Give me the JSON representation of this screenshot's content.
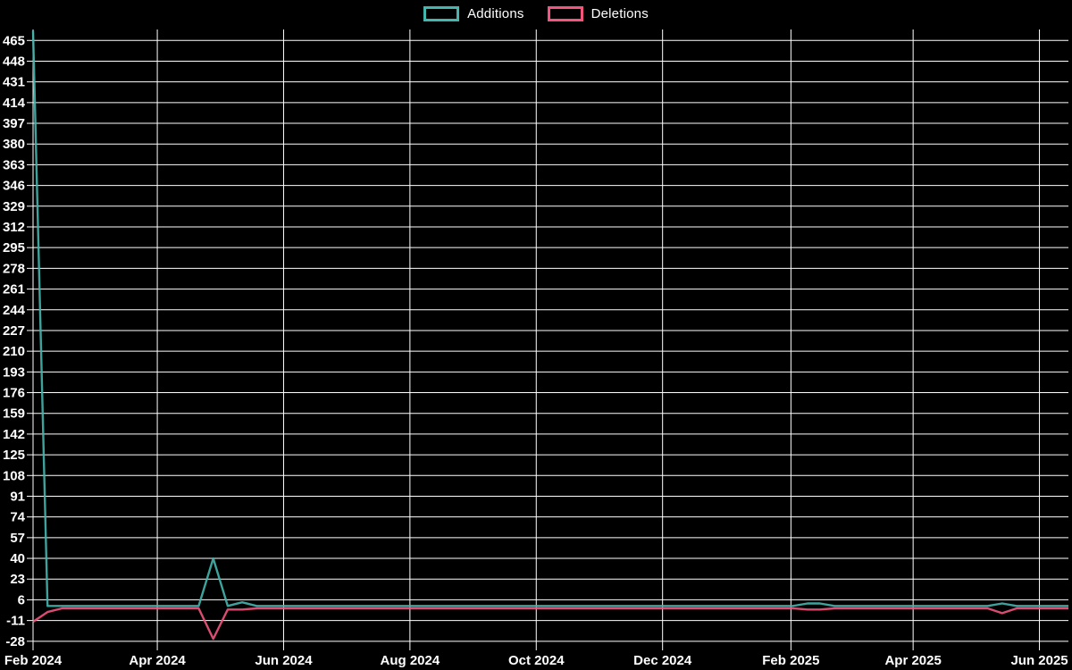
{
  "chart_data": {
    "type": "line",
    "title": "",
    "background_color": "#000000",
    "grid_color": "#ffffff",
    "text_color": "#ffffff",
    "grid": "on",
    "legend_position": "top-center",
    "legend": [
      {
        "label": "Additions",
        "color": "#45b5ae"
      },
      {
        "label": "Deletions",
        "color": "#f2557e"
      }
    ],
    "y_axis": {
      "min": -34,
      "max": 474,
      "tick_step": 17,
      "ticks": [
        465,
        448,
        431,
        414,
        397,
        380,
        363,
        346,
        329,
        312,
        295,
        278,
        261,
        244,
        227,
        210,
        193,
        176,
        159,
        142,
        125,
        108,
        91,
        74,
        57,
        40,
        23,
        6,
        -11,
        -28
      ]
    },
    "x_axis": {
      "start": "2024-02-01",
      "end": "2025-06-15",
      "ticks": [
        {
          "label": "Feb 2024",
          "date": "2024-02-01"
        },
        {
          "label": "Apr 2024",
          "date": "2024-04-01"
        },
        {
          "label": "Jun 2024",
          "date": "2024-06-01"
        },
        {
          "label": "Aug 2024",
          "date": "2024-08-01"
        },
        {
          "label": "Oct 2024",
          "date": "2024-10-01"
        },
        {
          "label": "Dec 2024",
          "date": "2024-12-01"
        },
        {
          "label": "Feb 2025",
          "date": "2025-02-01"
        },
        {
          "label": "Apr 2025",
          "date": "2025-04-01"
        },
        {
          "label": "Jun 2025",
          "date": "2025-06-01"
        }
      ]
    },
    "series": [
      {
        "name": "Deletions",
        "color": "#f2557e",
        "points": [
          [
            "2024-02-01",
            -12
          ],
          [
            "2024-02-08",
            -4
          ],
          [
            "2024-02-15",
            -1
          ],
          [
            "2024-04-21",
            -1
          ],
          [
            "2024-04-28",
            -26
          ],
          [
            "2024-05-05",
            -2
          ],
          [
            "2024-05-12",
            -2
          ],
          [
            "2024-05-19",
            -1
          ],
          [
            "2025-02-02",
            -1
          ],
          [
            "2025-02-09",
            -2
          ],
          [
            "2025-02-15",
            -2
          ],
          [
            "2025-02-22",
            -1
          ],
          [
            "2025-05-07",
            -1
          ],
          [
            "2025-05-14",
            -5
          ],
          [
            "2025-05-21",
            -1
          ],
          [
            "2025-06-15",
            -1
          ]
        ]
      },
      {
        "name": "Additions",
        "color": "#45b5ae",
        "points": [
          [
            "2024-02-01",
            473
          ],
          [
            "2024-02-08",
            1
          ],
          [
            "2024-04-21",
            1
          ],
          [
            "2024-04-28",
            40
          ],
          [
            "2024-05-05",
            1
          ],
          [
            "2024-05-12",
            4
          ],
          [
            "2024-05-19",
            1
          ],
          [
            "2025-02-02",
            1
          ],
          [
            "2025-02-09",
            3
          ],
          [
            "2025-02-15",
            3
          ],
          [
            "2025-02-22",
            1
          ],
          [
            "2025-05-07",
            1
          ],
          [
            "2025-05-14",
            3
          ],
          [
            "2025-05-21",
            1
          ],
          [
            "2025-06-15",
            1
          ]
        ]
      }
    ]
  }
}
